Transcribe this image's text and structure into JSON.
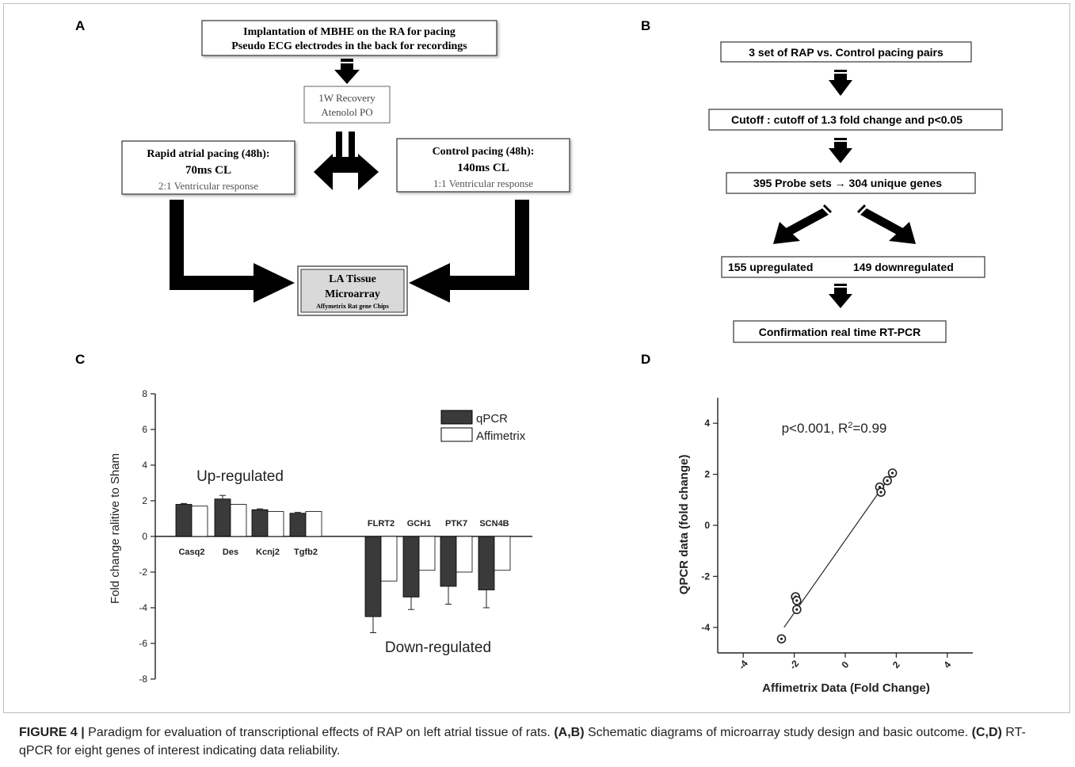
{
  "panel_labels": {
    "a": "A",
    "b": "B",
    "c": "C",
    "d": "D"
  },
  "panel_a": {
    "top_box": [
      "Implantation of MBHE on the RA for pacing",
      "Pseudo ECG electrodes in the back for recordings"
    ],
    "recovery_box": [
      "1W Recovery",
      "Atenolol PO"
    ],
    "left_box": {
      "line1": "Rapid atrial pacing (48h):",
      "line2": "70ms CL",
      "line3": "2:1 Ventricular response"
    },
    "right_box": {
      "line1": "Control pacing (48h):",
      "line2": "140ms CL",
      "line3": "1:1 Ventricular response"
    },
    "bottom_box": {
      "line1": "LA Tissue",
      "line2": "Microarray",
      "line3": "Affymetrix Rat gene Chips"
    }
  },
  "panel_b": {
    "box1": "3 set of RAP vs. Control pacing pairs",
    "box2": "Cutoff : cutoff of 1.3 fold change and p<0.05",
    "box3": "395  Probe sets → 304 unique genes",
    "box4_left": "155 upregulated",
    "box4_right": "149 downregulated",
    "box5": "Confirmation real time RT-PCR"
  },
  "panel_c": {
    "up_label": "Up-regulated",
    "down_label": "Down-regulated",
    "colors": {
      "qpcr": "#3a3a3a",
      "affimetrix": "#ffffff"
    },
    "chart_data": {
      "type": "bar",
      "ylabel": "Fold change ralitive to Sham",
      "ylim": [
        -8,
        8
      ],
      "yticks": [
        8,
        6,
        4,
        2,
        0,
        -2,
        -4,
        -6,
        -8
      ],
      "categories": [
        "Casq2",
        "Des",
        "Kcnj2",
        "Tgfb2",
        "FLRT2",
        "GCH1",
        "PTK7",
        "SCN4B"
      ],
      "series": [
        {
          "name": "qPCR",
          "values": [
            1.8,
            2.1,
            1.5,
            1.3,
            -4.5,
            -3.4,
            -2.8,
            -3.0
          ],
          "error": [
            0.05,
            0.2,
            0.05,
            0.05,
            0.9,
            0.7,
            1.0,
            1.0
          ]
        },
        {
          "name": "Affimetrix",
          "values": [
            1.7,
            1.8,
            1.4,
            1.4,
            -2.5,
            -1.9,
            -2.0,
            -1.9
          ]
        }
      ]
    }
  },
  "panel_d": {
    "annotation_prefix": "p<0.001, R",
    "annotation_sup": "2",
    "annotation_suffix": "=0.99",
    "chart_data": {
      "type": "scatter",
      "xlabel": "Affimetrix Data (Fold Change)",
      "ylabel": "QPCR data (fold change)",
      "xlim": [
        -5,
        5
      ],
      "ylim": [
        -5,
        5
      ],
      "xticks": [
        -4,
        -2,
        0,
        2,
        4
      ],
      "yticks": [
        4,
        2,
        0,
        -2,
        -4
      ],
      "points": [
        {
          "x": -2.5,
          "y": -4.45
        },
        {
          "x": -1.95,
          "y": -2.8
        },
        {
          "x": -1.9,
          "y": -2.95
        },
        {
          "x": -1.9,
          "y": -3.3
        },
        {
          "x": 1.35,
          "y": 1.5
        },
        {
          "x": 1.4,
          "y": 1.3
        },
        {
          "x": 1.65,
          "y": 1.75
        },
        {
          "x": 1.85,
          "y": 2.05
        }
      ],
      "fit_line": {
        "x": [
          -2.4,
          1.85
        ],
        "y": [
          -4.0,
          2.05
        ]
      }
    }
  },
  "caption": {
    "label": "FIGURE 4 |",
    "text1": " Paradigm for evaluation of transcriptional effects of RAP on left atrial tissue of rats. ",
    "bold1": "(A,B)",
    "text2": " Schematic diagrams of microarray study design and basic outcome. ",
    "bold2": "(C,D)",
    "text3": " RT-qPCR for eight genes of interest indicating data reliability."
  }
}
